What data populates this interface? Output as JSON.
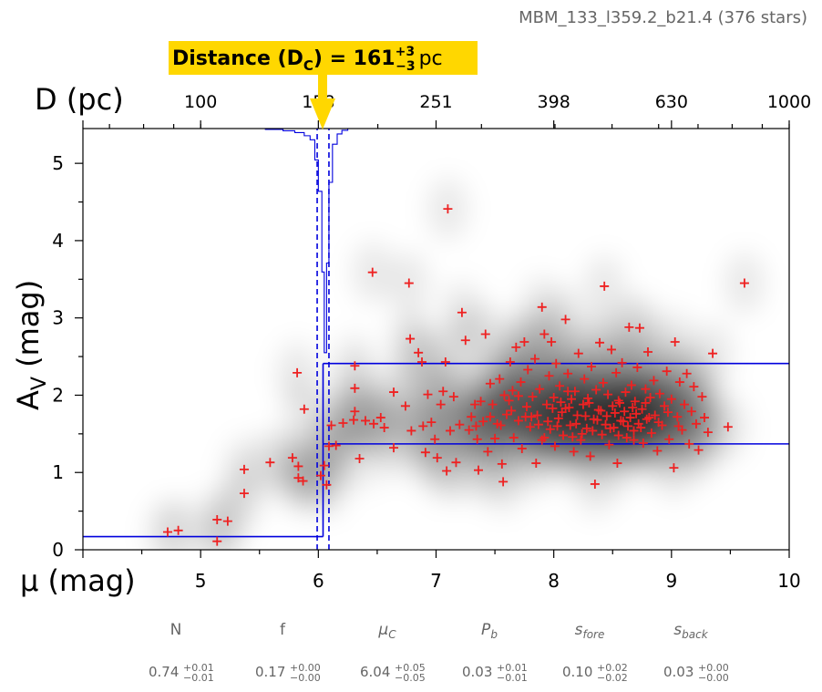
{
  "title": "MBM_133_l359.2_b21.4 (376 stars)",
  "distance_banner": {
    "label": "Distance (D",
    "subscript": "C",
    "suffix": ") = 161",
    "sup": "+3",
    "sub": "−3",
    "unit": "pc",
    "color": "#FFD700"
  },
  "colors": {
    "stars": "#EE2222",
    "model": "#0000DD",
    "axes": "#000000"
  },
  "chart_data": {
    "type": "scatter",
    "xlabel": "μ (mag)",
    "ylabel": "A_V (mag)",
    "top_label": "D (pc)",
    "xlim": [
      4,
      10
    ],
    "ylim": [
      0,
      5.45
    ],
    "xticks": [
      5,
      6,
      7,
      8,
      9,
      10
    ],
    "yticks": [
      0,
      1,
      2,
      3,
      4,
      5
    ],
    "top_ticks": [
      {
        "mu": 5.0,
        "label": "100"
      },
      {
        "mu": 6.0,
        "label": "158"
      },
      {
        "mu": 7.0,
        "label": "251"
      },
      {
        "mu": 8.0,
        "label": "398"
      },
      {
        "mu": 9.0,
        "label": "630"
      },
      {
        "mu": 10.0,
        "label": "1000"
      }
    ],
    "background": "gaussian density of stars (grayscale)",
    "model": {
      "mu_cloud": 6.04,
      "mu_err": [
        5.99,
        6.09
      ],
      "av_fore": 0.17,
      "av_back_low": 1.37,
      "av_back_high": 2.41
    },
    "stars": [
      [
        4.72,
        0.23
      ],
      [
        4.81,
        0.25
      ],
      [
        5.14,
        0.11
      ],
      [
        5.14,
        0.39
      ],
      [
        5.23,
        0.37
      ],
      [
        5.37,
        1.04
      ],
      [
        5.37,
        0.73
      ],
      [
        5.59,
        1.13
      ],
      [
        5.78,
        1.19
      ],
      [
        5.82,
        2.29
      ],
      [
        5.83,
        0.93
      ],
      [
        5.87,
        0.89
      ],
      [
        5.88,
        1.82
      ],
      [
        5.83,
        1.08
      ],
      [
        6.02,
        0.96
      ],
      [
        6.05,
        1.09
      ],
      [
        6.07,
        0.84
      ],
      [
        6.09,
        1.34
      ],
      [
        6.11,
        1.61
      ],
      [
        6.15,
        1.35
      ],
      [
        6.21,
        1.64
      ],
      [
        6.3,
        1.68
      ],
      [
        6.31,
        1.79
      ],
      [
        6.31,
        2.09
      ],
      [
        6.31,
        2.38
      ],
      [
        6.35,
        1.18
      ],
      [
        6.4,
        1.67
      ],
      [
        6.46,
        3.59
      ],
      [
        6.47,
        1.63
      ],
      [
        6.53,
        1.71
      ],
      [
        6.56,
        1.58
      ],
      [
        6.64,
        2.04
      ],
      [
        6.64,
        1.32
      ],
      [
        6.74,
        1.86
      ],
      [
        6.77,
        3.45
      ],
      [
        6.78,
        2.73
      ],
      [
        6.79,
        1.54
      ],
      [
        6.85,
        2.55
      ],
      [
        6.88,
        2.43
      ],
      [
        6.89,
        1.6
      ],
      [
        6.91,
        1.26
      ],
      [
        6.93,
        2.01
      ],
      [
        6.96,
        1.65
      ],
      [
        6.99,
        1.43
      ],
      [
        7.01,
        1.19
      ],
      [
        7.04,
        1.88
      ],
      [
        7.06,
        2.05
      ],
      [
        7.08,
        2.43
      ],
      [
        7.09,
        1.02
      ],
      [
        7.1,
        4.41
      ],
      [
        7.12,
        1.54
      ],
      [
        7.15,
        1.98
      ],
      [
        7.17,
        1.13
      ],
      [
        7.22,
        3.07
      ],
      [
        7.25,
        2.71
      ],
      [
        7.28,
        1.55
      ],
      [
        7.3,
        1.72
      ],
      [
        7.33,
        1.88
      ],
      [
        7.35,
        1.43
      ],
      [
        7.36,
        1.03
      ],
      [
        7.4,
        1.66
      ],
      [
        7.42,
        2.79
      ],
      [
        7.44,
        1.27
      ],
      [
        7.46,
        2.15
      ],
      [
        7.48,
        1.88
      ],
      [
        7.5,
        1.44
      ],
      [
        7.52,
        1.63
      ],
      [
        7.54,
        2.21
      ],
      [
        7.56,
        1.11
      ],
      [
        7.57,
        0.88
      ],
      [
        7.6,
        1.75
      ],
      [
        7.62,
        1.93
      ],
      [
        7.63,
        2.43
      ],
      [
        7.65,
        2.06
      ],
      [
        7.66,
        1.45
      ],
      [
        7.68,
        2.62
      ],
      [
        7.7,
        1.67
      ],
      [
        7.72,
        2.17
      ],
      [
        7.73,
        1.31
      ],
      [
        7.75,
        2.69
      ],
      [
        7.77,
        1.85
      ],
      [
        7.78,
        2.33
      ],
      [
        7.8,
        1.59
      ],
      [
        7.82,
        1.98
      ],
      [
        7.84,
        2.47
      ],
      [
        7.85,
        1.12
      ],
      [
        7.86,
        1.74
      ],
      [
        7.88,
        2.08
      ],
      [
        7.9,
        3.14
      ],
      [
        7.9,
        1.42
      ],
      [
        7.92,
        2.79
      ],
      [
        7.94,
        1.88
      ],
      [
        7.96,
        2.25
      ],
      [
        7.97,
        1.56
      ],
      [
        7.98,
        2.69
      ],
      [
        8.0,
        1.97
      ],
      [
        8.01,
        1.34
      ],
      [
        8.02,
        2.41
      ],
      [
        8.04,
        1.7
      ],
      [
        8.05,
        2.12
      ],
      [
        8.06,
        1.91
      ],
      [
        8.08,
        1.48
      ],
      [
        8.1,
        2.98
      ],
      [
        8.1,
        1.83
      ],
      [
        8.12,
        2.28
      ],
      [
        8.14,
        1.61
      ],
      [
        8.15,
        1.95
      ],
      [
        8.17,
        1.27
      ],
      [
        8.18,
        2.05
      ],
      [
        8.2,
        1.74
      ],
      [
        8.21,
        2.54
      ],
      [
        8.23,
        1.42
      ],
      [
        8.25,
        1.88
      ],
      [
        8.26,
        2.21
      ],
      [
        8.28,
        1.57
      ],
      [
        8.29,
        1.96
      ],
      [
        8.31,
        1.21
      ],
      [
        8.32,
        2.37
      ],
      [
        8.34,
        1.69
      ],
      [
        8.35,
        0.85
      ],
      [
        8.36,
        2.07
      ],
      [
        8.38,
        1.81
      ],
      [
        8.39,
        2.68
      ],
      [
        8.41,
        1.49
      ],
      [
        8.42,
        2.16
      ],
      [
        8.43,
        3.41
      ],
      [
        8.45,
        1.73
      ],
      [
        8.46,
        2.01
      ],
      [
        8.47,
        1.36
      ],
      [
        8.49,
        2.59
      ],
      [
        8.5,
        1.86
      ],
      [
        8.51,
        1.58
      ],
      [
        8.53,
        2.29
      ],
      [
        8.54,
        1.12
      ],
      [
        8.55,
        1.93
      ],
      [
        8.57,
        1.67
      ],
      [
        8.58,
        2.42
      ],
      [
        8.6,
        1.79
      ],
      [
        8.61,
        2.04
      ],
      [
        8.62,
        1.45
      ],
      [
        8.64,
        2.88
      ],
      [
        8.65,
        1.71
      ],
      [
        8.66,
        2.13
      ],
      [
        8.68,
        1.54
      ],
      [
        8.69,
        1.92
      ],
      [
        8.71,
        2.36
      ],
      [
        8.72,
        1.63
      ],
      [
        8.73,
        2.87
      ],
      [
        8.75,
        1.82
      ],
      [
        8.76,
        1.38
      ],
      [
        8.78,
        2.08
      ],
      [
        8.79,
        1.69
      ],
      [
        8.8,
        2.56
      ],
      [
        8.82,
        1.97
      ],
      [
        8.83,
        1.51
      ],
      [
        8.85,
        2.19
      ],
      [
        8.86,
        1.74
      ],
      [
        8.88,
        1.28
      ],
      [
        8.9,
        2.02
      ],
      [
        8.92,
        1.61
      ],
      [
        8.94,
        1.86
      ],
      [
        8.96,
        2.31
      ],
      [
        8.98,
        1.43
      ],
      [
        9.0,
        1.95
      ],
      [
        9.02,
        1.06
      ],
      [
        9.03,
        2.69
      ],
      [
        9.05,
        1.72
      ],
      [
        9.07,
        2.17
      ],
      [
        9.09,
        1.55
      ],
      [
        9.11,
        1.88
      ],
      [
        9.13,
        2.28
      ],
      [
        9.15,
        1.37
      ],
      [
        9.17,
        1.79
      ],
      [
        9.19,
        2.11
      ],
      [
        9.21,
        1.63
      ],
      [
        9.23,
        1.29
      ],
      [
        9.26,
        1.98
      ],
      [
        9.28,
        1.71
      ],
      [
        9.31,
        1.52
      ],
      [
        9.35,
        2.54
      ],
      [
        9.48,
        1.59
      ],
      [
        9.62,
        3.45
      ],
      [
        7.2,
        1.62
      ],
      [
        7.38,
        1.92
      ],
      [
        7.55,
        1.61
      ],
      [
        7.7,
        1.99
      ],
      [
        7.81,
        1.72
      ],
      [
        7.95,
        1.66
      ],
      [
        8.07,
        1.78
      ],
      [
        8.19,
        1.63
      ],
      [
        8.27,
        1.73
      ],
      [
        8.33,
        1.54
      ],
      [
        8.44,
        1.62
      ],
      [
        8.52,
        1.77
      ],
      [
        8.59,
        1.66
      ],
      [
        8.67,
        1.84
      ],
      [
        8.74,
        1.58
      ],
      [
        8.81,
        1.71
      ],
      [
        8.89,
        1.65
      ],
      [
        8.97,
        1.78
      ],
      [
        9.06,
        1.6
      ],
      [
        8.13,
        1.84
      ],
      [
        8.24,
        1.5
      ],
      [
        8.37,
        1.68
      ],
      [
        8.48,
        1.57
      ],
      [
        8.56,
        1.9
      ],
      [
        8.63,
        1.6
      ],
      [
        8.7,
        1.76
      ],
      [
        7.92,
        1.45
      ],
      [
        8.03,
        1.6
      ],
      [
        8.16,
        1.46
      ],
      [
        8.4,
        1.8
      ],
      [
        8.55,
        1.48
      ],
      [
        8.68,
        1.42
      ],
      [
        8.78,
        1.9
      ],
      [
        8.3,
        1.9
      ],
      [
        8.12,
        2.05
      ],
      [
        7.99,
        1.83
      ],
      [
        7.87,
        1.62
      ],
      [
        7.76,
        1.72
      ],
      [
        7.64,
        1.8
      ],
      [
        7.58,
        2.0
      ],
      [
        7.46,
        1.72
      ],
      [
        7.34,
        1.6
      ]
    ]
  },
  "params": [
    {
      "name": "N",
      "value": "0.74",
      "sup": "+0.01",
      "sub": "−0.01"
    },
    {
      "name": "f",
      "value": "0.17",
      "sup": "+0.00",
      "sub": "−0.00"
    },
    {
      "name": "μ_C",
      "value": "6.04",
      "sup": "+0.05",
      "sub": "−0.05"
    },
    {
      "name": "P_b",
      "value": "0.03",
      "sup": "+0.01",
      "sub": "−0.01"
    },
    {
      "name": "s_fore",
      "value": "0.10",
      "sup": "+0.02",
      "sub": "−0.02"
    },
    {
      "name": "s_back",
      "value": "0.03",
      "sup": "+0.00",
      "sub": "−0.00"
    }
  ]
}
